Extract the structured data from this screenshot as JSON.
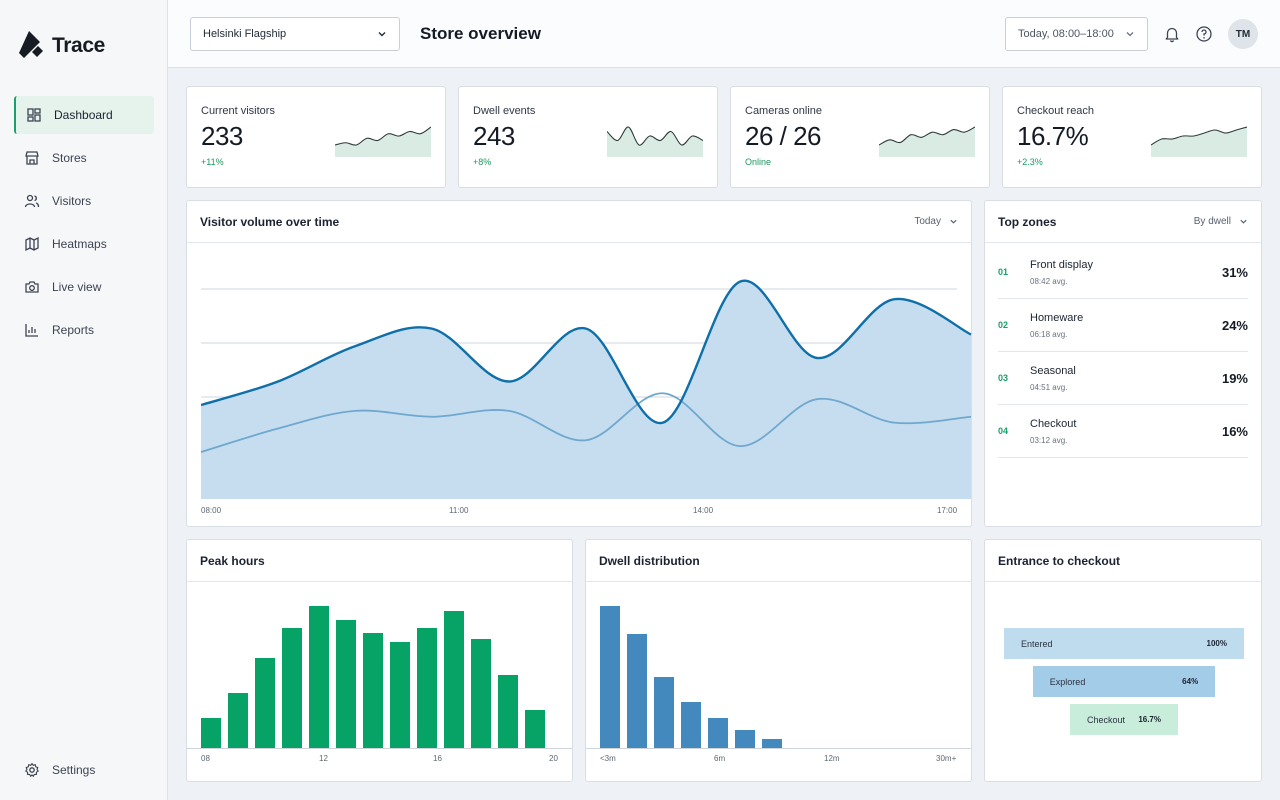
{
  "app": {
    "name": "Trace"
  },
  "sidebar": {
    "items": [
      {
        "label": "Dashboard",
        "icon": "dashboard-icon"
      },
      {
        "label": "Stores",
        "icon": "store-icon"
      },
      {
        "label": "Visitors",
        "icon": "users-icon"
      },
      {
        "label": "Heatmaps",
        "icon": "map-icon"
      },
      {
        "label": "Live view",
        "icon": "camera-icon"
      },
      {
        "label": "Reports",
        "icon": "bar-chart-icon"
      }
    ],
    "settings_label": "Settings"
  },
  "header": {
    "store": "Helsinki Flagship",
    "title": "Store overview",
    "date_range": "Today, 08:00–18:00",
    "avatar_initials": "TM"
  },
  "kpis": [
    {
      "label": "Current visitors",
      "value": "233",
      "delta": "+11%",
      "spark": [
        4,
        5,
        4,
        7,
        6,
        9,
        8,
        10,
        9,
        12
      ]
    },
    {
      "label": "Dwell events",
      "value": "243",
      "delta": "+8%",
      "spark": [
        9,
        7,
        10,
        6,
        8,
        7,
        9,
        6,
        8,
        7
      ]
    },
    {
      "label": "Cameras online",
      "value": "26 / 26",
      "delta": "Online",
      "spark": [
        5,
        7,
        6,
        9,
        8,
        10,
        9,
        11,
        10,
        12
      ]
    },
    {
      "label": "Checkout reach",
      "value": "16.7%",
      "delta": "+2.3%",
      "spark": [
        5,
        7,
        7,
        8,
        8,
        9,
        10,
        9,
        10,
        11
      ]
    }
  ],
  "volume": {
    "title": "Visitor volume over time",
    "filter": "Today",
    "x_labels": [
      "08:00",
      "11:00",
      "14:00",
      "17:00"
    ]
  },
  "top_zones": {
    "title": "Top zones",
    "filter": "By dwell",
    "items": [
      {
        "rank": "01",
        "name": "Front display",
        "avg": "08:42 avg.",
        "pct": "31%"
      },
      {
        "rank": "02",
        "name": "Homeware",
        "avg": "06:18 avg.",
        "pct": "24%"
      },
      {
        "rank": "03",
        "name": "Seasonal",
        "avg": "04:51 avg.",
        "pct": "19%"
      },
      {
        "rank": "04",
        "name": "Checkout",
        "avg": "03:12 avg.",
        "pct": "16%"
      }
    ]
  },
  "peak_hours": {
    "title": "Peak hours",
    "x_labels": [
      "08",
      "12",
      "16",
      "20"
    ]
  },
  "dwell": {
    "title": "Dwell distribution",
    "x_labels": [
      "<3m",
      "6m",
      "12m",
      "30m+"
    ]
  },
  "funnel": {
    "title": "Entrance to checkout",
    "stages": [
      {
        "label": "Entered",
        "value": "100%",
        "fraction": 1.0
      },
      {
        "label": "Explored",
        "value": "64%",
        "fraction": 0.76
      },
      {
        "label": "Checkout",
        "value": "16.7%",
        "fraction": 0.45
      }
    ]
  },
  "colors": {
    "accent": "#1aa06b",
    "line": "#0f6fa8",
    "bars_green": "#07a266",
    "bars_blue": "#4389bd"
  },
  "chart_data": [
    {
      "type": "area",
      "x": [
        "08:00",
        "09:00",
        "10:00",
        "11:00",
        "12:00",
        "13:00",
        "14:00",
        "15:00",
        "16:00",
        "17:00",
        "18:00"
      ],
      "series": [
        {
          "values": [
            80,
            100,
            130,
            145,
            100,
            145,
            65,
            185,
            120,
            170,
            140
          ]
        },
        {
          "values": [
            40,
            60,
            75,
            70,
            75,
            50,
            90,
            45,
            85,
            65,
            70
          ]
        }
      ]
    },
    {
      "type": "bar",
      "categories": [
        "08",
        "09",
        "10",
        "11",
        "12",
        "13",
        "14",
        "15",
        "16",
        "17",
        "18",
        "19",
        "20"
      ],
      "values": [
        30,
        55,
        90,
        120,
        142,
        128,
        115,
        106,
        120,
        137,
        109,
        73,
        38
      ]
    },
    {
      "type": "bar",
      "categories": [
        "<3m",
        "",
        "",
        "6m",
        "",
        "",
        "",
        "12m",
        "",
        "",
        "",
        "",
        "30m+"
      ],
      "values": [
        142,
        114,
        71,
        46,
        30,
        18,
        9,
        0,
        0,
        0,
        0,
        0,
        0
      ]
    }
  ]
}
